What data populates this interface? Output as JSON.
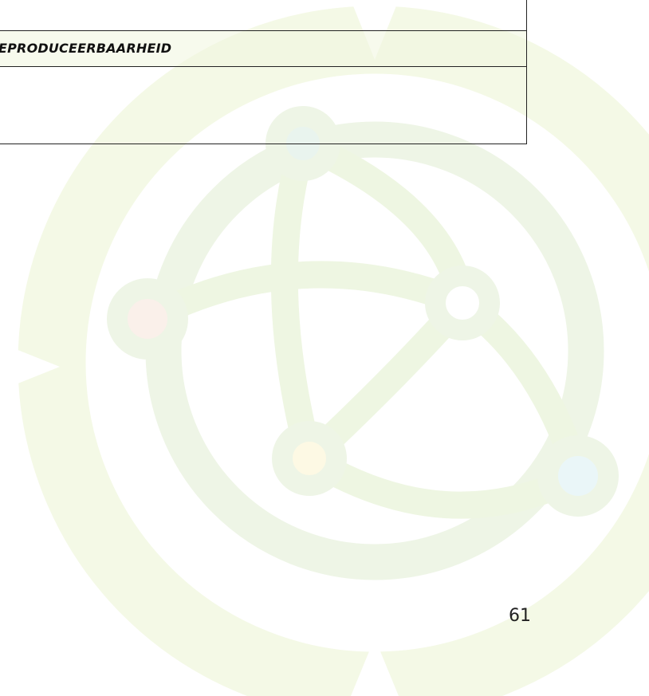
{
  "table": {
    "header": "EPRODUCEERBAARHEID"
  },
  "page_number": "61"
}
